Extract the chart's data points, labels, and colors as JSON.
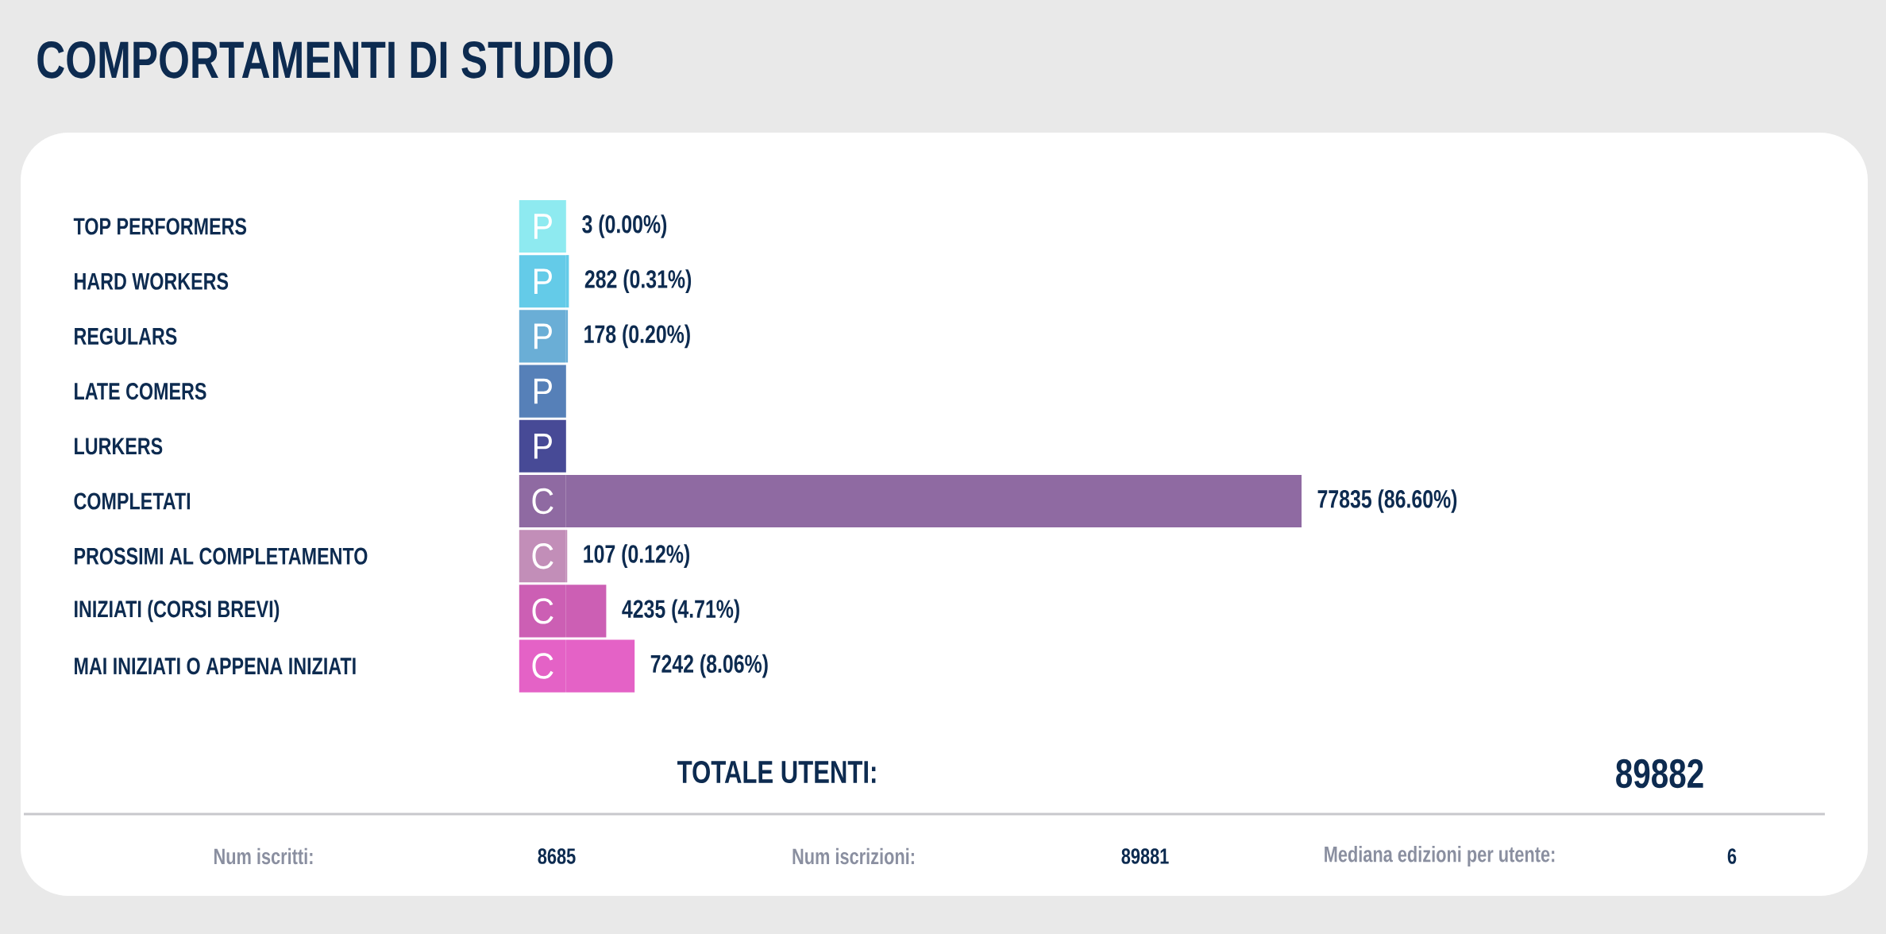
{
  "chart_data": {
    "type": "bar",
    "orientation": "horizontal",
    "title": "COMPORTAMENTI DI STUDIO",
    "categories": [
      "TOP PERFORMERS",
      "HARD WORKERS",
      "REGULARS",
      "LATE COMERS",
      "LURKERS",
      "COMPLETATI",
      "PROSSIMI AL COMPLETAMENTO",
      "INIZIATI (CORSI BREVI)",
      "MAI INIZIATI O APPENA INIZIATI"
    ],
    "series": [
      {
        "name": "P",
        "values": [
          3,
          282,
          178,
          null,
          null,
          null,
          null,
          null,
          null
        ],
        "colors": [
          "#8eeaf0",
          "#64cbe8",
          "#6aaed6",
          "#5680b8",
          "#474a96",
          null,
          null,
          null,
          null
        ],
        "value_labels": [
          "3 (0.00%)",
          "282 (0.31%)",
          "178 (0.20%)",
          null,
          null,
          null,
          null,
          null,
          null
        ]
      },
      {
        "name": "C",
        "values": [
          null,
          null,
          null,
          null,
          null,
          77835,
          107,
          4235,
          7242
        ],
        "colors": [
          null,
          null,
          null,
          null,
          null,
          "#8f6aa2",
          "#c28eb8",
          "#cc5fb4",
          "#e462c6"
        ],
        "value_labels": [
          null,
          null,
          null,
          null,
          null,
          "77835 (86.60%)",
          "107 (0.12%)",
          "4235 (4.71%)",
          "7242 (8.06%)"
        ]
      }
    ],
    "legend": "left",
    "annotations": [
      "TOTALE UTENTI:",
      "89882",
      "Num iscritti:",
      "8685",
      "Num iscrizioni:",
      "89881",
      "Mediana edizioni per utente:",
      "6"
    ]
  }
}
